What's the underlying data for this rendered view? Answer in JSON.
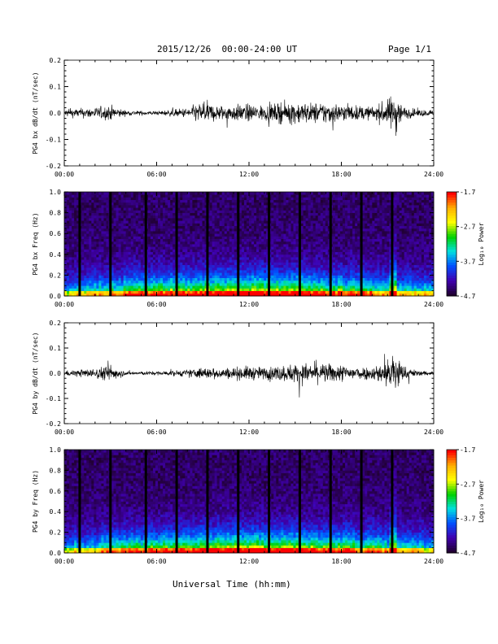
{
  "header": {
    "title": "2015/12/26  00:00-24:00 UT",
    "page": "Page 1/1"
  },
  "x_axis_title": "Universal Time (hh:mm)",
  "colors": {
    "background": "#ffffff",
    "trace": "#000000",
    "colormap": [
      "#ff0000",
      "#ffb000",
      "#ffff00",
      "#00d000",
      "#00e0e0",
      "#0050ff",
      "#4000b0",
      "#200030"
    ]
  },
  "chart_data": [
    {
      "type": "line",
      "ylabel": "PG4 bx dB/dt (nT/sec)",
      "xlim": [
        0,
        24
      ],
      "ylim": [
        -0.2,
        0.2
      ],
      "x_ticks": [
        "00:00",
        "06:00",
        "12:00",
        "18:00",
        "24:00"
      ],
      "y_ticks": [
        "-0.2",
        "-0.1",
        "0.0",
        "0.1",
        "0.2"
      ],
      "envelope": {
        "hour": [
          0,
          2,
          3,
          4,
          6,
          8,
          9,
          10,
          12,
          13,
          15,
          16,
          17,
          18,
          19,
          20,
          21,
          21.5,
          22,
          23,
          24
        ],
        "amp": [
          0.03,
          0.045,
          0.06,
          0.02,
          0.015,
          0.04,
          0.09,
          0.06,
          0.07,
          0.06,
          0.09,
          0.08,
          0.09,
          0.07,
          0.06,
          0.05,
          0.1,
          0.18,
          0.05,
          0.03,
          0.02
        ]
      }
    },
    {
      "type": "heatmap",
      "ylabel": "PG4 bx Freq (Hz)",
      "xlim": [
        0,
        24
      ],
      "ylim": [
        0,
        1.0
      ],
      "x_ticks": [
        "00:00",
        "06:00",
        "12:00",
        "18:00",
        "24:00"
      ],
      "y_ticks": [
        "0.0",
        "0.2",
        "0.4",
        "0.6",
        "0.8",
        "1.0"
      ],
      "colorbar": {
        "label": "Log₁₀ Power",
        "ticks": [
          "-1.7",
          "-2.7",
          "-3.7",
          "-4.7"
        ],
        "range": [
          -4.7,
          -1.7
        ]
      },
      "gaps_hour": [
        1.0,
        3.0,
        5.3,
        7.3,
        9.3,
        11.3,
        13.3,
        15.3,
        17.3,
        19.3,
        21.3
      ]
    },
    {
      "type": "line",
      "ylabel": "PG4 by dB/dt (nT/sec)",
      "xlim": [
        0,
        24
      ],
      "ylim": [
        -0.2,
        0.2
      ],
      "x_ticks": [
        "00:00",
        "06:00",
        "12:00",
        "18:00",
        "24:00"
      ],
      "y_ticks": [
        "-0.2",
        "-0.1",
        "0.0",
        "0.1",
        "0.2"
      ],
      "envelope": {
        "hour": [
          0,
          2,
          3,
          4,
          6,
          8,
          9,
          10,
          12,
          13,
          15,
          16,
          17,
          18,
          19,
          20,
          21,
          21.5,
          22,
          23,
          24
        ],
        "amp": [
          0.02,
          0.04,
          0.07,
          0.015,
          0.015,
          0.03,
          0.05,
          0.04,
          0.06,
          0.05,
          0.08,
          0.08,
          0.08,
          0.07,
          0.06,
          0.05,
          0.12,
          0.2,
          0.06,
          0.02,
          0.02
        ]
      }
    },
    {
      "type": "heatmap",
      "ylabel": "PG4 by Freq (Hz)",
      "xlim": [
        0,
        24
      ],
      "ylim": [
        0,
        1.0
      ],
      "x_ticks": [
        "00:00",
        "06:00",
        "12:00",
        "18:00",
        "24:00"
      ],
      "y_ticks": [
        "0.0",
        "0.2",
        "0.4",
        "0.6",
        "0.8",
        "1.0"
      ],
      "colorbar": {
        "label": "Log₁₀ Power",
        "ticks": [
          "-1.7",
          "-2.7",
          "-3.7",
          "-4.7"
        ],
        "range": [
          -4.7,
          -1.7
        ]
      },
      "gaps_hour": [
        1.0,
        3.0,
        5.3,
        7.3,
        9.3,
        11.3,
        13.3,
        15.3,
        17.3,
        19.3,
        21.3
      ]
    }
  ]
}
